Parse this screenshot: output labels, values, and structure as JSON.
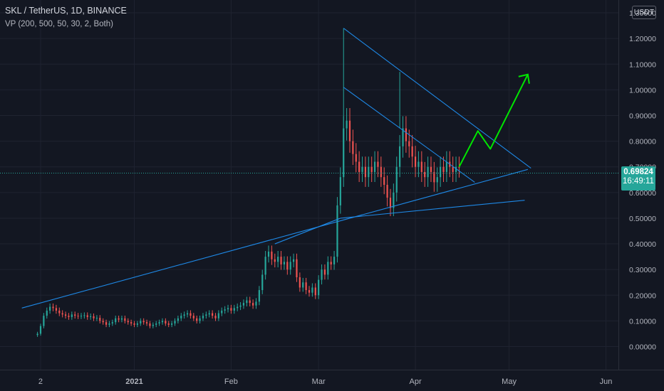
{
  "header": {
    "symbol_line": "SKL / TetherUS, 1D, BINANCE",
    "indicator_line": "VP (200, 500, 50, 30, 2, Both)"
  },
  "currency_label": "USDT",
  "last_price": {
    "price": "0.69824",
    "countdown": "16:49:11"
  },
  "colors": {
    "background": "#131722",
    "grid": "#1f2330",
    "up": "#26a69a",
    "down": "#ef5350",
    "trendline": "#2962ff",
    "arrow": "#00e600",
    "axis_text": "#b2b5be",
    "tag": "#26a69a"
  },
  "chart_data": {
    "type": "candlestick",
    "title": "",
    "y_ticks": [
      "0.00000",
      "0.10000",
      "0.20000",
      "0.30000",
      "0.40000",
      "0.50000",
      "0.60000",
      "0.70000",
      "0.80000",
      "0.90000",
      "1.00000",
      "1.10000",
      "1.20000",
      "1.30000"
    ],
    "x_ticks": [
      "2",
      "2021",
      "Feb",
      "Mar",
      "Apr",
      "May",
      "Jun"
    ],
    "ylim": [
      -0.09,
      1.35
    ],
    "xlim": [
      "2020-11-19",
      "2021-06-05"
    ],
    "grid": true,
    "last_price": 0.69824,
    "closes": [
      [
        "2020-12-01",
        0.05
      ],
      [
        "2020-12-02",
        0.08
      ],
      [
        "2020-12-03",
        0.12
      ],
      [
        "2020-12-04",
        0.14
      ],
      [
        "2020-12-05",
        0.155
      ],
      [
        "2020-12-06",
        0.15
      ],
      [
        "2020-12-07",
        0.14
      ],
      [
        "2020-12-08",
        0.13
      ],
      [
        "2020-12-09",
        0.125
      ],
      [
        "2020-12-10",
        0.12
      ],
      [
        "2020-12-11",
        0.115
      ],
      [
        "2020-12-12",
        0.125
      ],
      [
        "2020-12-13",
        0.12
      ],
      [
        "2020-12-14",
        0.118
      ],
      [
        "2020-12-15",
        0.12
      ],
      [
        "2020-12-16",
        0.122
      ],
      [
        "2020-12-17",
        0.115
      ],
      [
        "2020-12-18",
        0.118
      ],
      [
        "2020-12-19",
        0.11
      ],
      [
        "2020-12-20",
        0.112
      ],
      [
        "2020-12-21",
        0.1
      ],
      [
        "2020-12-22",
        0.095
      ],
      [
        "2020-12-23",
        0.085
      ],
      [
        "2020-12-24",
        0.09
      ],
      [
        "2020-12-25",
        0.095
      ],
      [
        "2020-12-26",
        0.11
      ],
      [
        "2020-12-27",
        0.105
      ],
      [
        "2020-12-28",
        0.11
      ],
      [
        "2020-12-29",
        0.1
      ],
      [
        "2020-12-30",
        0.095
      ],
      [
        "2020-12-31",
        0.09
      ],
      [
        "2021-01-01",
        0.085
      ],
      [
        "2021-01-02",
        0.09
      ],
      [
        "2021-01-03",
        0.1
      ],
      [
        "2021-01-04",
        0.095
      ],
      [
        "2021-01-05",
        0.09
      ],
      [
        "2021-01-06",
        0.08
      ],
      [
        "2021-01-07",
        0.085
      ],
      [
        "2021-01-08",
        0.09
      ],
      [
        "2021-01-09",
        0.095
      ],
      [
        "2021-01-10",
        0.1
      ],
      [
        "2021-01-11",
        0.09
      ],
      [
        "2021-01-12",
        0.085
      ],
      [
        "2021-01-13",
        0.09
      ],
      [
        "2021-01-14",
        0.1
      ],
      [
        "2021-01-15",
        0.11
      ],
      [
        "2021-01-16",
        0.12
      ],
      [
        "2021-01-17",
        0.125
      ],
      [
        "2021-01-18",
        0.13
      ],
      [
        "2021-01-19",
        0.12
      ],
      [
        "2021-01-20",
        0.11
      ],
      [
        "2021-01-21",
        0.1
      ],
      [
        "2021-01-22",
        0.11
      ],
      [
        "2021-01-23",
        0.12
      ],
      [
        "2021-01-24",
        0.125
      ],
      [
        "2021-01-25",
        0.13
      ],
      [
        "2021-01-26",
        0.12
      ],
      [
        "2021-01-27",
        0.11
      ],
      [
        "2021-01-28",
        0.13
      ],
      [
        "2021-01-29",
        0.14
      ],
      [
        "2021-01-30",
        0.145
      ],
      [
        "2021-01-31",
        0.15
      ],
      [
        "2021-02-01",
        0.14
      ],
      [
        "2021-02-02",
        0.15
      ],
      [
        "2021-02-03",
        0.155
      ],
      [
        "2021-02-04",
        0.16
      ],
      [
        "2021-02-05",
        0.17
      ],
      [
        "2021-02-06",
        0.18
      ],
      [
        "2021-02-07",
        0.17
      ],
      [
        "2021-02-08",
        0.16
      ],
      [
        "2021-02-09",
        0.175
      ],
      [
        "2021-02-10",
        0.22
      ],
      [
        "2021-02-11",
        0.28
      ],
      [
        "2021-02-12",
        0.35
      ],
      [
        "2021-02-13",
        0.37
      ],
      [
        "2021-02-14",
        0.34
      ],
      [
        "2021-02-15",
        0.33
      ],
      [
        "2021-02-16",
        0.35
      ],
      [
        "2021-02-17",
        0.32
      ],
      [
        "2021-02-18",
        0.33
      ],
      [
        "2021-02-19",
        0.3
      ],
      [
        "2021-02-20",
        0.33
      ],
      [
        "2021-02-21",
        0.34
      ],
      [
        "2021-02-22",
        0.27
      ],
      [
        "2021-02-23",
        0.23
      ],
      [
        "2021-02-24",
        0.25
      ],
      [
        "2021-02-25",
        0.22
      ],
      [
        "2021-02-26",
        0.21
      ],
      [
        "2021-02-27",
        0.23
      ],
      [
        "2021-02-28",
        0.2
      ],
      [
        "2021-03-01",
        0.26
      ],
      [
        "2021-03-02",
        0.3
      ],
      [
        "2021-03-03",
        0.28
      ],
      [
        "2021-03-04",
        0.33
      ],
      [
        "2021-03-05",
        0.32
      ],
      [
        "2021-03-06",
        0.35
      ],
      [
        "2021-03-07",
        0.55
      ],
      [
        "2021-03-08",
        0.66
      ],
      [
        "2021-03-09",
        0.85
      ],
      [
        "2021-03-10",
        0.88
      ],
      [
        "2021-03-11",
        0.8
      ],
      [
        "2021-03-12",
        0.75
      ],
      [
        "2021-03-13",
        0.72
      ],
      [
        "2021-03-14",
        0.68
      ],
      [
        "2021-03-15",
        0.7
      ],
      [
        "2021-03-16",
        0.66
      ],
      [
        "2021-03-17",
        0.7
      ],
      [
        "2021-03-18",
        0.68
      ],
      [
        "2021-03-19",
        0.72
      ],
      [
        "2021-03-20",
        0.7
      ],
      [
        "2021-03-21",
        0.66
      ],
      [
        "2021-03-22",
        0.63
      ],
      [
        "2021-03-23",
        0.58
      ],
      [
        "2021-03-24",
        0.54
      ],
      [
        "2021-03-25",
        0.6
      ],
      [
        "2021-03-26",
        0.7
      ],
      [
        "2021-03-27",
        0.78
      ],
      [
        "2021-03-28",
        0.85
      ],
      [
        "2021-03-29",
        0.8
      ],
      [
        "2021-03-30",
        0.78
      ],
      [
        "2021-03-31",
        0.74
      ],
      [
        "2021-04-01",
        0.7
      ],
      [
        "2021-04-02",
        0.72
      ],
      [
        "2021-04-03",
        0.68
      ],
      [
        "2021-04-04",
        0.66
      ],
      [
        "2021-04-05",
        0.7
      ],
      [
        "2021-04-06",
        0.68
      ],
      [
        "2021-04-07",
        0.64
      ],
      [
        "2021-04-08",
        0.66
      ],
      [
        "2021-04-09",
        0.7
      ],
      [
        "2021-04-10",
        0.68
      ],
      [
        "2021-04-11",
        0.72
      ],
      [
        "2021-04-12",
        0.7
      ],
      [
        "2021-04-13",
        0.68
      ],
      [
        "2021-04-14",
        0.7
      ],
      [
        "2021-04-15",
        0.69824
      ]
    ]
  }
}
